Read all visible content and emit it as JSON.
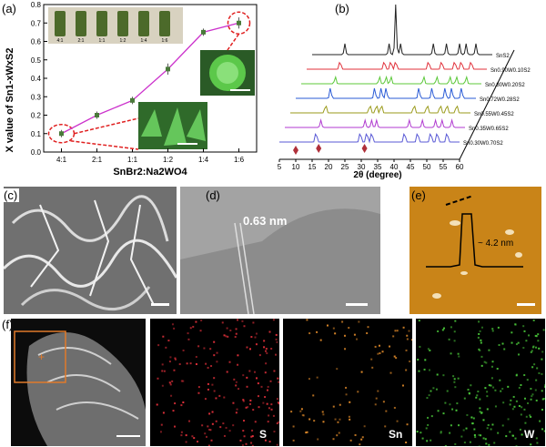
{
  "labels": {
    "a": "(a)",
    "b": "(b)",
    "c": "(c)",
    "d": "(d)",
    "e": "(e)",
    "f": "(f)"
  },
  "panel_a": {
    "ylabel": "X value of Sn1-xWxS2",
    "xlabel": "SnBr2:Na2WO4",
    "vial_labels": [
      "4:1",
      "2:1",
      "1:1",
      "1:2",
      "1:4",
      "1:6"
    ],
    "line_color": "#cc33cc",
    "point_color": "#4a7a3a"
  },
  "panel_b": {
    "xlabel": "2θ (degree)",
    "xticks": [
      "5",
      "10",
      "15",
      "20",
      "25",
      "30",
      "35",
      "40",
      "45",
      "50",
      "55",
      "60"
    ],
    "series": [
      {
        "name": "SnS2",
        "color": "#222222"
      },
      {
        "name": "Sn0.90W0.10S2",
        "color": "#e0303a"
      },
      {
        "name": "Sn0.80W0.20S2",
        "color": "#5cc83a"
      },
      {
        "name": "Sn0.72W0.28S2",
        "color": "#2a5bd6"
      },
      {
        "name": "Sn0.55W0.45S2",
        "color": "#9a9a1a"
      },
      {
        "name": "Sn0.35W0.65S2",
        "color": "#b03ad0"
      },
      {
        "name": "Sn0.30W0.70S2",
        "color": "#5a5ad6"
      }
    ],
    "marker_color": "#b0303a"
  },
  "panel_d": {
    "annotation": "0.63 nm"
  },
  "panel_e": {
    "annotation": "~ 4.2 nm"
  },
  "panel_f": {
    "maps": [
      {
        "element": "S",
        "color": "#e0303a"
      },
      {
        "element": "Sn",
        "color": "#e08a2a"
      },
      {
        "element": "W",
        "color": "#4ac83a"
      }
    ]
  },
  "chart_data": {
    "type": "line",
    "categories": [
      "4:1",
      "2:1",
      "1:1",
      "1:2",
      "1:4",
      "1:6"
    ],
    "xlabel": "SnBr2:Na2WO4",
    "ylabel": "X value of Sn1-xWxS2",
    "ylim": [
      0.0,
      0.8
    ],
    "yticks": [
      0.0,
      0.1,
      0.2,
      0.3,
      0.4,
      0.5,
      0.6,
      0.7,
      0.8
    ],
    "series": [
      {
        "values": [
          0.1,
          0.2,
          0.28,
          0.45,
          0.65,
          0.7
        ]
      }
    ],
    "errors": [
      0.02,
      0.02,
      0.02,
      0.03,
      0.02,
      0.03
    ],
    "grid": false
  }
}
